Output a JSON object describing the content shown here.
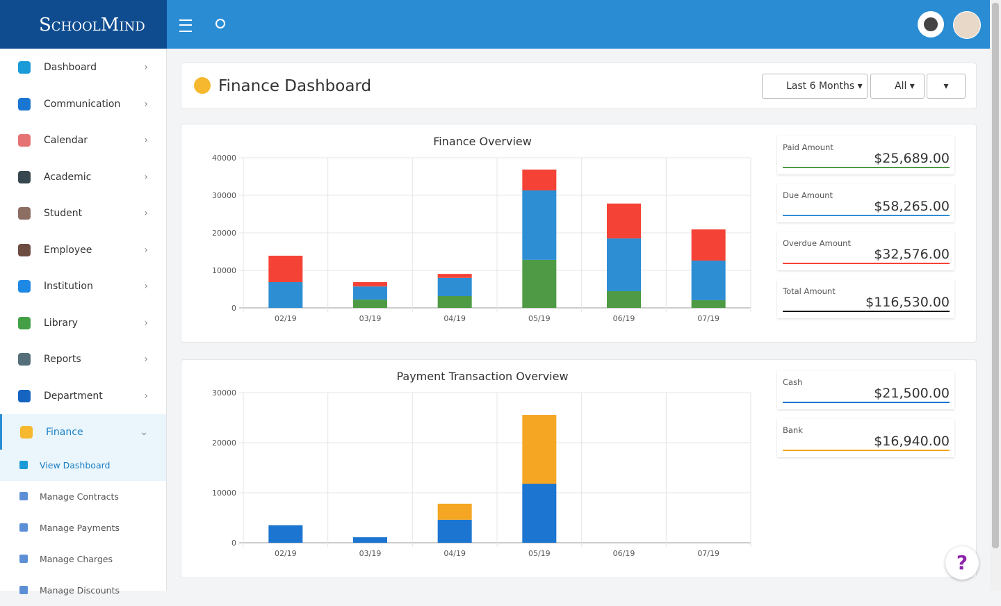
{
  "brand": "SchoolMind",
  "sidebar": {
    "items": [
      "Dashboard",
      "Communication",
      "Calendar",
      "Academic",
      "Student",
      "Employee",
      "Institution",
      "Library",
      "Reports",
      "Department",
      "Finance"
    ],
    "subitems": [
      "View Dashboard",
      "Manage Contracts",
      "Manage Payments",
      "Manage Charges",
      "Manage Discounts"
    ]
  },
  "header": {
    "title": "Finance Dashboard",
    "filters": [
      "Last 6 Months",
      "All"
    ]
  },
  "help": "?",
  "summary": [
    [
      {
        "label": "Paid Amount",
        "value": "$25,689.00",
        "color": "#4e9a45"
      },
      {
        "label": "Due Amount",
        "value": "$58,265.00",
        "color": "#2d8ed3"
      },
      {
        "label": "Overdue Amount",
        "value": "$32,576.00",
        "color": "#f44336"
      },
      {
        "label": "Total Amount",
        "value": "$116,530.00",
        "color": "#111111"
      }
    ],
    [
      {
        "label": "Cash",
        "value": "$21,500.00",
        "color": "#1c75d0"
      },
      {
        "label": "Bank",
        "value": "$16,940.00",
        "color": "#f5a623"
      }
    ]
  ],
  "chart_data": [
    {
      "type": "bar",
      "stacked": true,
      "title": "Finance Overview",
      "categories": [
        "02/19",
        "03/19",
        "04/19",
        "05/19",
        "06/19",
        "07/19"
      ],
      "series": [
        {
          "color": "#4e9a45",
          "values": [
            0,
            2200,
            3150,
            12800,
            4450,
            2050
          ]
        },
        {
          "color": "#2d8ed3",
          "values": [
            6850,
            3500,
            4850,
            18500,
            14050,
            10550
          ]
        },
        {
          "color": "#f44336",
          "values": [
            7050,
            1150,
            1050,
            5550,
            9300,
            8300
          ]
        }
      ],
      "ylim": [
        0,
        40000
      ],
      "yticks": [
        0,
        10000,
        20000,
        30000,
        40000
      ],
      "grid": true
    },
    {
      "type": "bar",
      "stacked": true,
      "title": "Payment Transaction Overview",
      "categories": [
        "02/19",
        "03/19",
        "04/19",
        "05/19",
        "06/19",
        "07/19"
      ],
      "series": [
        {
          "color": "#1c75d0",
          "values": [
            3500,
            1100,
            4600,
            11800,
            0,
            0
          ]
        },
        {
          "color": "#f5a623",
          "values": [
            0,
            0,
            3200,
            13750,
            0,
            0
          ]
        }
      ],
      "ylim": [
        0,
        30000
      ],
      "yticks": [
        0,
        10000,
        20000,
        30000
      ],
      "grid": true
    }
  ]
}
